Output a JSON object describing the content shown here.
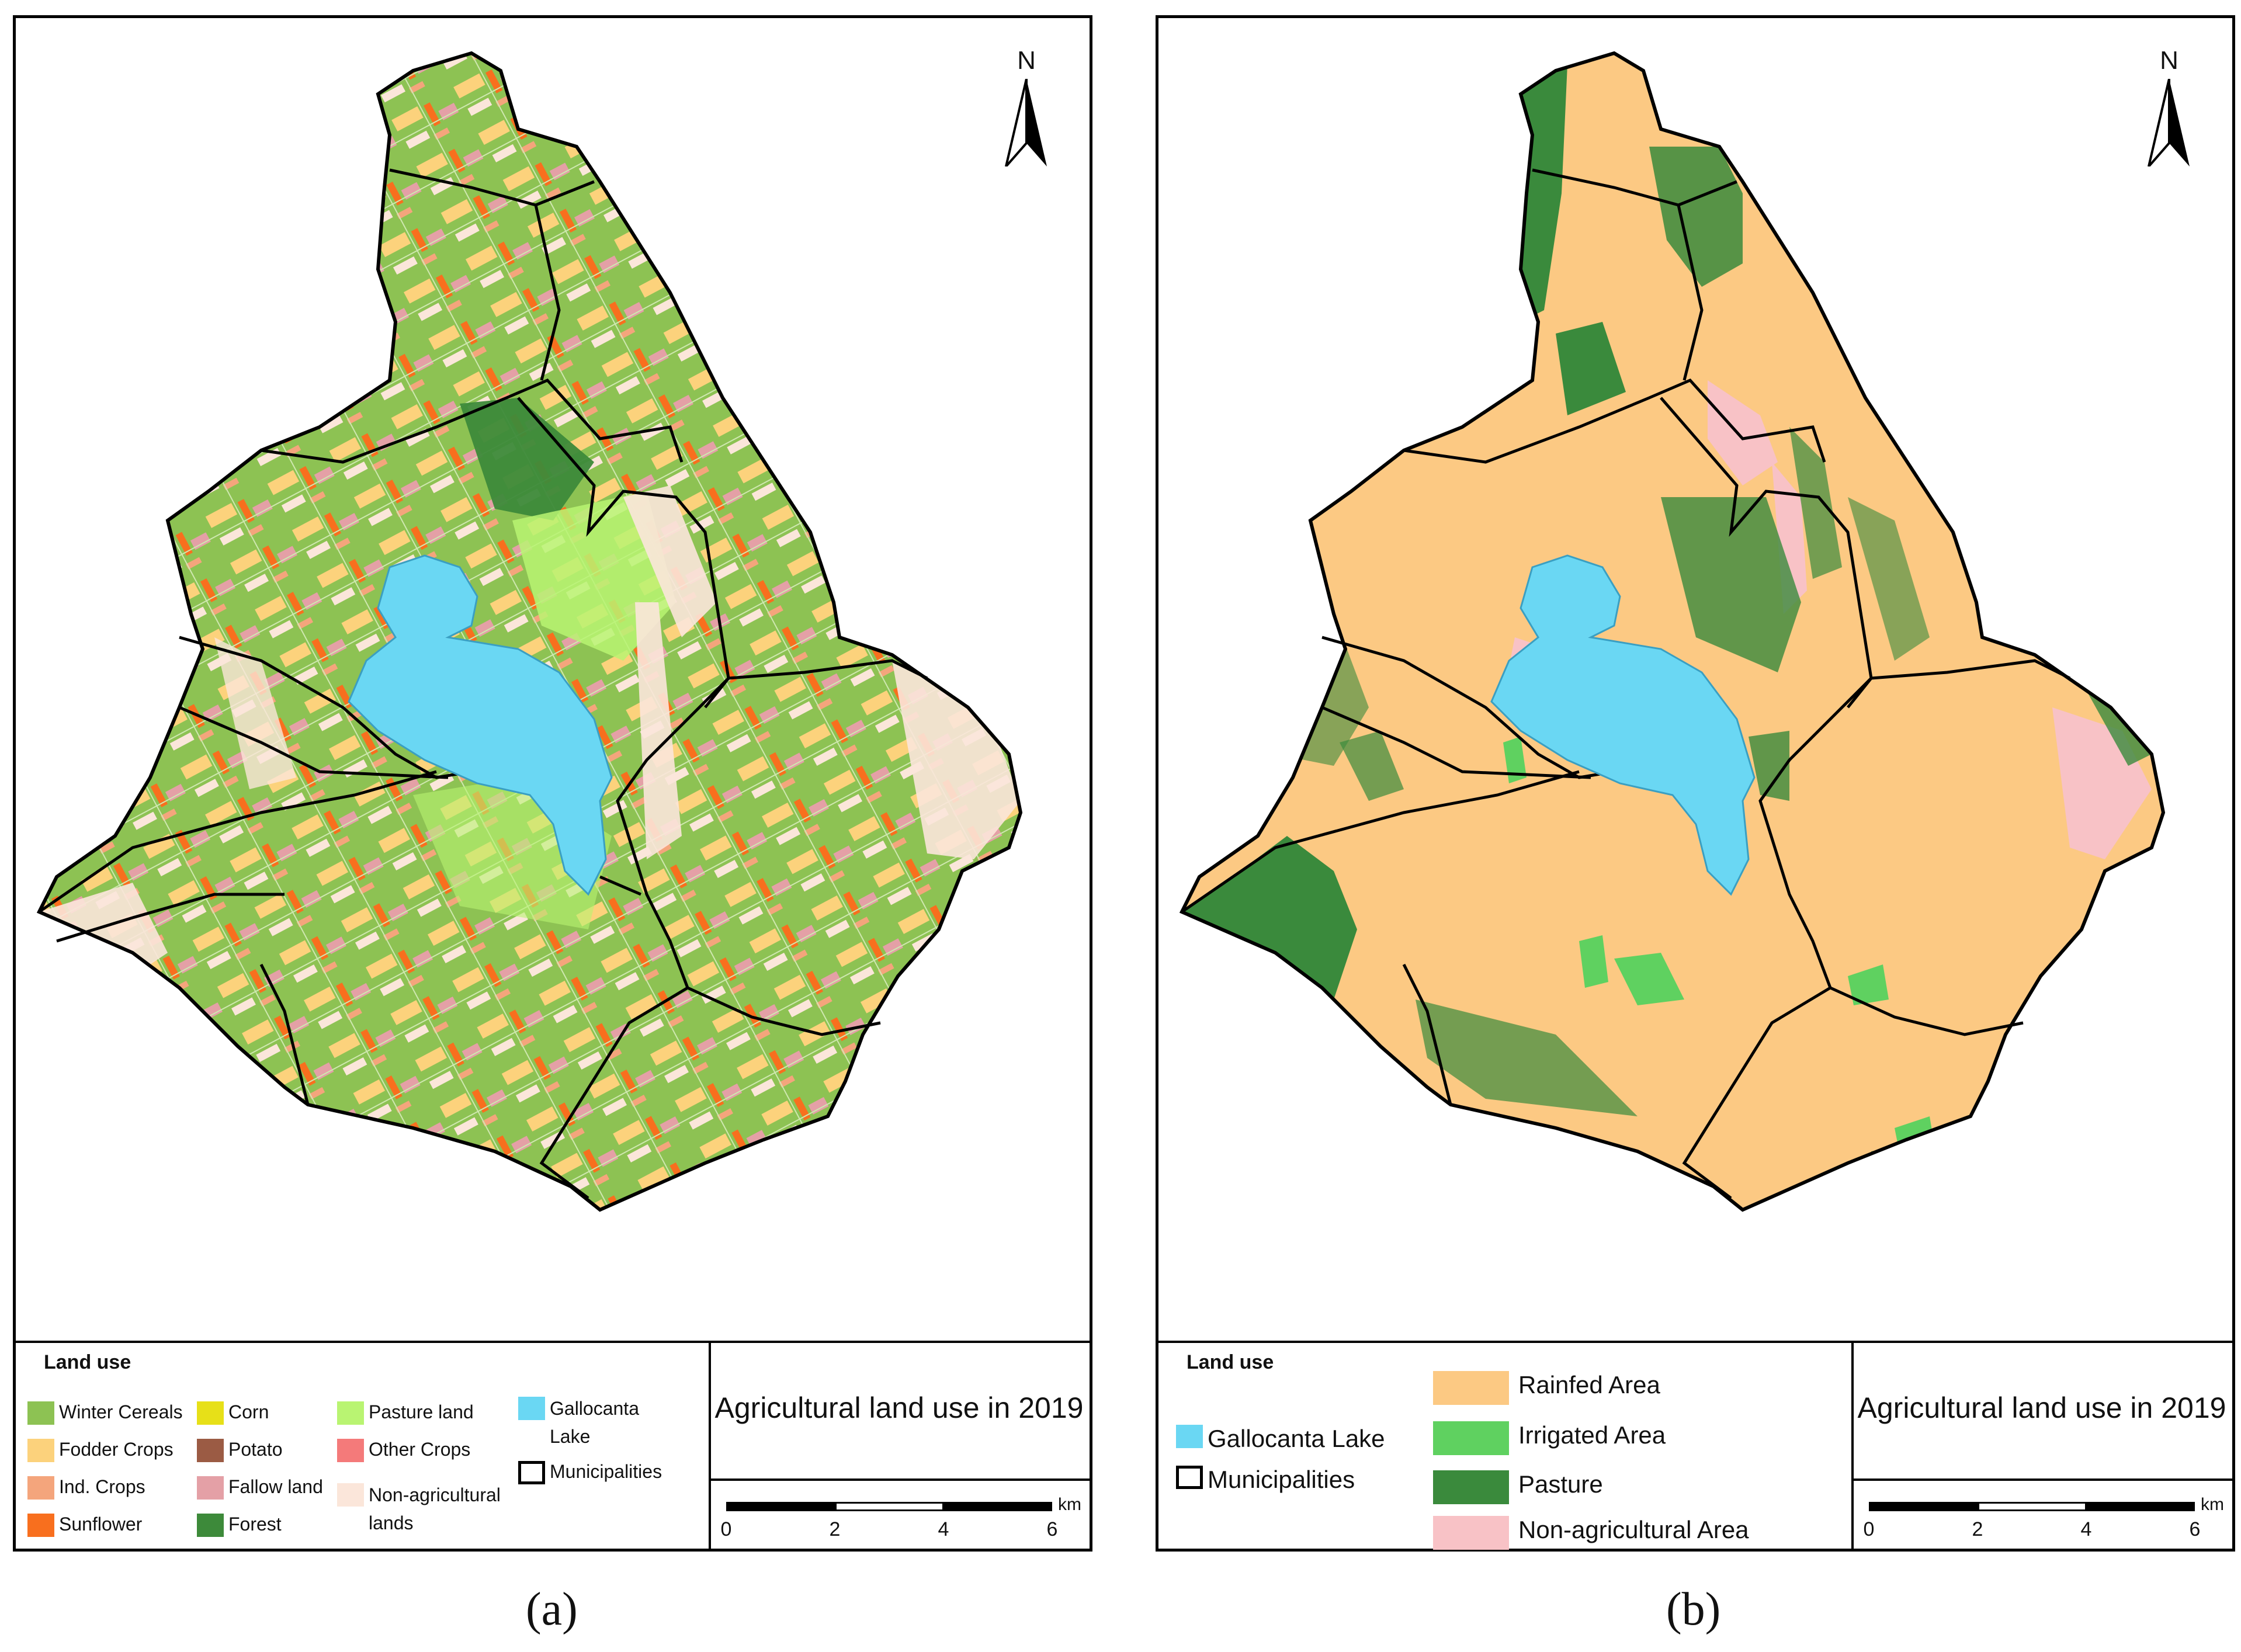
{
  "panel_a": {
    "caption": "(a)",
    "north_label": "N",
    "legend_title": "Land use",
    "legend_items": [
      {
        "label": "Winter Cereals",
        "color": "#8dc253"
      },
      {
        "label": "Fodder Crops",
        "color": "#fcd27c"
      },
      {
        "label": "Ind. Crops",
        "color": "#f4a57c"
      },
      {
        "label": "Sunflower",
        "color": "#f86f1e"
      },
      {
        "label": "Corn",
        "color": "#e7e018"
      },
      {
        "label": "Potato",
        "color": "#9b5b44"
      },
      {
        "label": "Fallow land",
        "color": "#e4a0a6"
      },
      {
        "label": "Forest",
        "color": "#3d8a3a"
      },
      {
        "label": "Pasture land",
        "color": "#b9f472"
      },
      {
        "label": "Other Crops",
        "color": "#f47a7a"
      },
      {
        "label": "Non-agricultural lands",
        "color": "#fbe6da"
      },
      {
        "label": "Gallocanta Lake",
        "color": "#6ad7f3"
      },
      {
        "label": "Municipalities",
        "color": "#000000"
      }
    ],
    "map_title": "Agricultural land use in 2019",
    "scale_labels": [
      "0",
      "2",
      "4",
      "6"
    ],
    "scale_unit": "km"
  },
  "panel_b": {
    "caption": "(b)",
    "north_label": "N",
    "legend_title": "Land use",
    "legend_items": [
      {
        "label": "Gallocanta Lake",
        "color": "#6ad7f3"
      },
      {
        "label": "Municipalities",
        "color": "#000000"
      },
      {
        "label": "Rainfed Area",
        "color": "#fcc983"
      },
      {
        "label": "Irrigated Area",
        "color": "#5fd160"
      },
      {
        "label": "Pasture",
        "color": "#3a8a3c"
      },
      {
        "label": "Non-agricultural Area",
        "color": "#f8c2c6"
      }
    ],
    "map_title": "Agricultural land use in 2019",
    "scale_labels": [
      "0",
      "2",
      "4",
      "6"
    ],
    "scale_unit": "km"
  }
}
